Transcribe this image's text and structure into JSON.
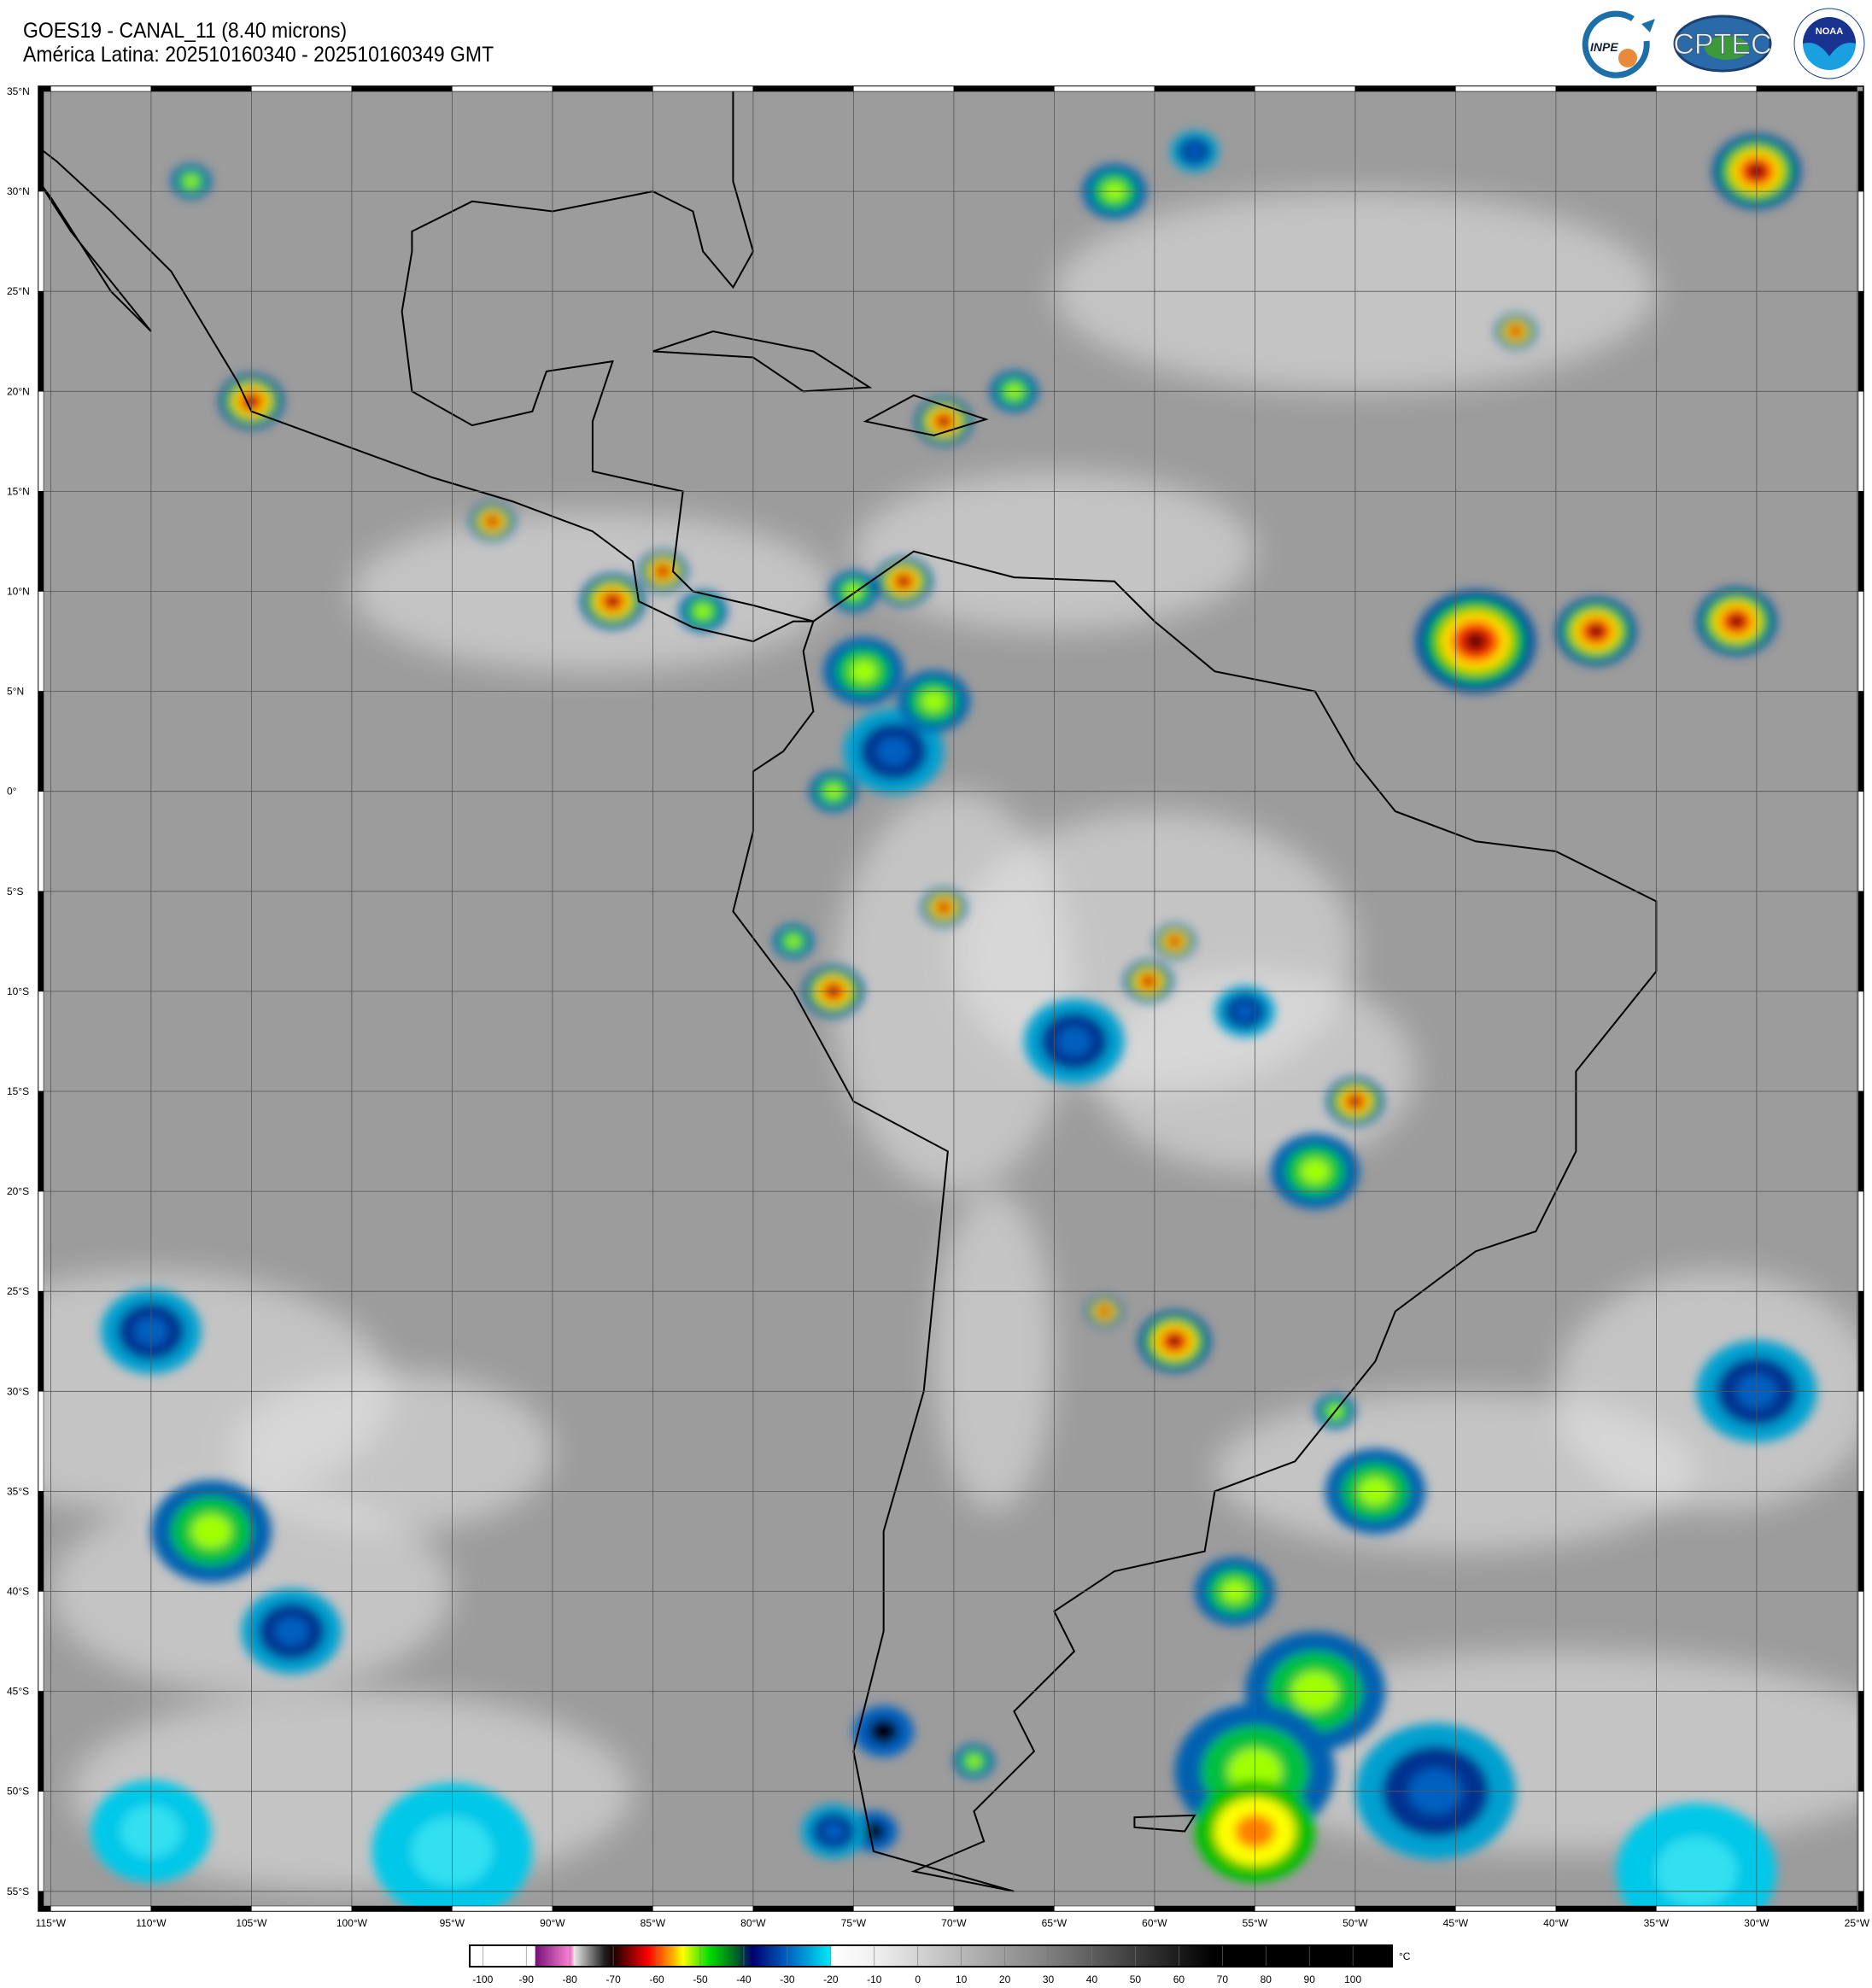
{
  "header": {
    "title": "GOES19 - CANAL_11 (8.40 microns)",
    "subtitle": "América Latina: 202510160340 - 202510160349 GMT"
  },
  "logos": [
    {
      "name": "INPE",
      "text": "INPE"
    },
    {
      "name": "CPTEC",
      "text": "CPTEC"
    },
    {
      "name": "NOAA",
      "text": "NOAA"
    }
  ],
  "map": {
    "projection": "equirectangular",
    "lon_range": [
      -115.6,
      -25
    ],
    "lat_range": [
      -56,
      35.2
    ],
    "grid_step_deg": 5,
    "lat_labels": [
      "35°N",
      "30°N",
      "25°N",
      "20°N",
      "15°N",
      "10°N",
      "5°N",
      "0°",
      "5°S",
      "10°S",
      "15°S",
      "20°S",
      "25°S",
      "30°S",
      "35°S",
      "40°S",
      "45°S",
      "50°S",
      "55°S"
    ],
    "lon_labels": [
      "115°W",
      "110°W",
      "105°W",
      "100°W",
      "95°W",
      "90°W",
      "85°W",
      "80°W",
      "75°W",
      "70°W",
      "65°W",
      "60°W",
      "55°W",
      "50°W",
      "45°W",
      "40°W",
      "35°W",
      "30°W",
      "25°W"
    ],
    "background_color": "#9c9c9c",
    "coastline_color": "#000000"
  },
  "colorbar": {
    "unit": "°C",
    "ticks": [
      "-100",
      "-90",
      "-80",
      "-70",
      "-60",
      "-50",
      "-40",
      "-30",
      "-20",
      "-10",
      "0",
      "10",
      "20",
      "30",
      "40",
      "50",
      "60",
      "70",
      "80",
      "90",
      "100"
    ],
    "range": [
      -103,
      109
    ],
    "stops": [
      {
        "t": -103,
        "color": "#ffffff"
      },
      {
        "t": -88,
        "color": "#ffffff"
      },
      {
        "t": -87.9,
        "color": "#7a0f7a"
      },
      {
        "t": -79.5,
        "color": "#ff8ad8"
      },
      {
        "t": -79,
        "color": "#e8e8e8"
      },
      {
        "t": -72,
        "color": "#202020"
      },
      {
        "t": -70,
        "color": "#1a0000"
      },
      {
        "t": -62,
        "color": "#ff0000"
      },
      {
        "t": -57,
        "color": "#ff9a00"
      },
      {
        "t": -54,
        "color": "#ffff00"
      },
      {
        "t": -48,
        "color": "#00e000"
      },
      {
        "t": -42,
        "color": "#006a20"
      },
      {
        "t": -38,
        "color": "#000070"
      },
      {
        "t": -30,
        "color": "#0060c0"
      },
      {
        "t": -20.1,
        "color": "#00e8f8"
      },
      {
        "t": -20,
        "color": "#ffffff"
      },
      {
        "t": -10,
        "color": "#f0f0f0"
      },
      {
        "t": 30,
        "color": "#808080"
      },
      {
        "t": 68,
        "color": "#000000"
      },
      {
        "t": 109,
        "color": "#000000"
      }
    ]
  }
}
